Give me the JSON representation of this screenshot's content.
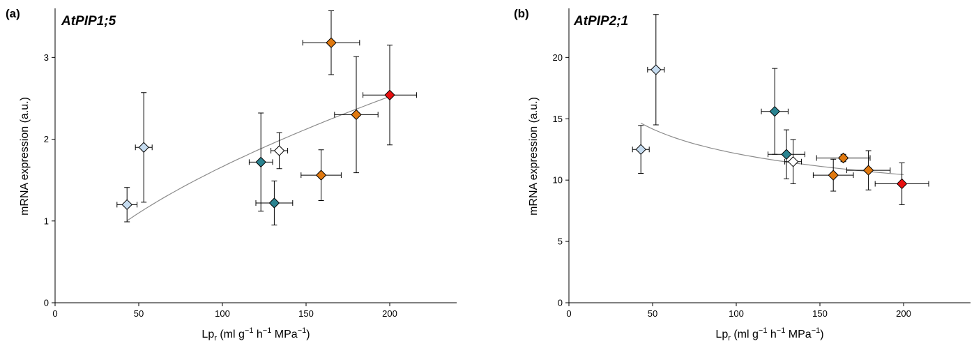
{
  "chart_data": [
    {
      "type": "scatter",
      "panel_label": "(a)",
      "title": "AtPIP1;5",
      "xlabel": "Lp",
      "xlabel_sub": "r",
      "xlabel_units": "(ml g",
      "xlabel_units_sup1": "−1",
      "xlabel_units_mid1": " h",
      "xlabel_units_sup2": "−1",
      "xlabel_units_mid2": " MPa",
      "xlabel_units_sup3": "−1",
      "xlabel_units_end": ")",
      "ylabel": "mRNA expression (a.u.)",
      "xlim": [
        0,
        240
      ],
      "ylim": [
        0,
        3.6
      ],
      "xticks": [
        0,
        50,
        100,
        150,
        200
      ],
      "yticks": [
        0,
        1,
        2,
        3
      ],
      "grid": false,
      "points": [
        {
          "x": 43,
          "y": 1.2,
          "xerr": 6,
          "yerr": 0.21,
          "color": "#c6dcf0"
        },
        {
          "x": 53,
          "y": 1.9,
          "xerr": 5,
          "yerr": 0.67,
          "color": "#c6dcf0"
        },
        {
          "x": 123,
          "y": 1.72,
          "xerr": 7,
          "yerr": 0.6,
          "color": "#2a8390"
        },
        {
          "x": 131,
          "y": 1.22,
          "xerr": 11,
          "yerr": 0.27,
          "color": "#2a8390"
        },
        {
          "x": 134,
          "y": 1.86,
          "xerr": 5,
          "yerr": 0.22,
          "color": "#ffffff"
        },
        {
          "x": 159,
          "y": 1.56,
          "xerr": 12,
          "yerr": 0.31,
          "color": "#e07910"
        },
        {
          "x": 165,
          "y": 3.18,
          "xerr": 17,
          "yerr": 0.39,
          "color": "#e07910"
        },
        {
          "x": 180,
          "y": 2.3,
          "xerr": 13,
          "yerr": 0.71,
          "color": "#e07910"
        },
        {
          "x": 200,
          "y": 2.54,
          "xerr": 16,
          "yerr": 0.61,
          "color": "#e81010"
        }
      ],
      "fit": {
        "type": "power",
        "a": 0.105,
        "b": 0.6,
        "x_range": [
          43,
          200
        ],
        "color": "#8c8c8c"
      }
    },
    {
      "type": "scatter",
      "panel_label": "(b)",
      "title": "AtPIP2;1",
      "xlabel": "Lp",
      "xlabel_sub": "r",
      "xlabel_units": "(ml g",
      "xlabel_units_sup1": "−1",
      "xlabel_units_mid1": " h",
      "xlabel_units_sup2": "−1",
      "xlabel_units_mid2": " MPa",
      "xlabel_units_sup3": "−1",
      "xlabel_units_end": ")",
      "ylabel": "mRNA expression (a.u.)",
      "xlim": [
        0,
        240
      ],
      "ylim": [
        0,
        24
      ],
      "xticks": [
        0,
        50,
        100,
        150,
        200
      ],
      "yticks": [
        0,
        5,
        10,
        15,
        20
      ],
      "grid": false,
      "points": [
        {
          "x": 43,
          "y": 12.5,
          "xerr": 5,
          "yerr": 1.95,
          "color": "#c6dcf0"
        },
        {
          "x": 52,
          "y": 19.0,
          "xerr": 5,
          "yerr": 4.5,
          "color": "#c6dcf0"
        },
        {
          "x": 123,
          "y": 15.6,
          "xerr": 8,
          "yerr": 3.5,
          "color": "#2a8390"
        },
        {
          "x": 130,
          "y": 12.1,
          "xerr": 11,
          "yerr": 2.0,
          "color": "#2a8390"
        },
        {
          "x": 134,
          "y": 11.5,
          "xerr": 5,
          "yerr": 1.8,
          "color": "#ffffff"
        },
        {
          "x": 158,
          "y": 10.4,
          "xerr": 12,
          "yerr": 1.3,
          "color": "#e07910"
        },
        {
          "x": 164,
          "y": 11.8,
          "xerr": 16,
          "yerr": 0.3,
          "color": "#e07910"
        },
        {
          "x": 179,
          "y": 10.8,
          "xerr": 13,
          "yerr": 1.6,
          "color": "#e07910"
        },
        {
          "x": 199,
          "y": 9.7,
          "xerr": 16,
          "yerr": 1.7,
          "color": "#e81010"
        }
      ],
      "fit": {
        "type": "power",
        "a": 33.5,
        "b": -0.22,
        "x_range": [
          43,
          200
        ],
        "color": "#8c8c8c"
      }
    }
  ]
}
